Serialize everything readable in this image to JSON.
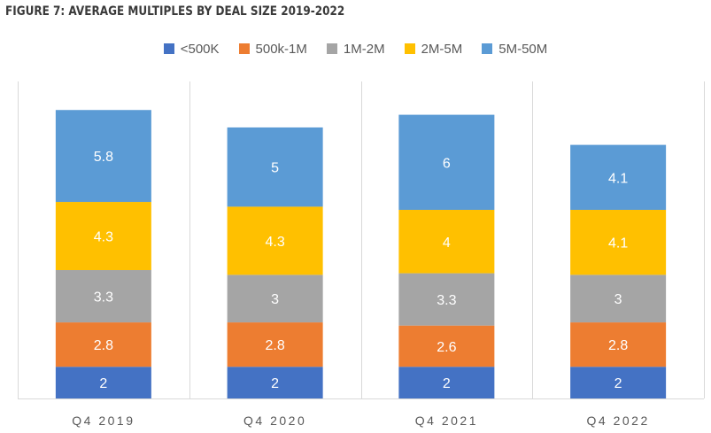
{
  "title": "FIGURE 7: AVERAGE MULTIPLES BY DEAL SIZE 2019-2022",
  "chart_data": {
    "type": "bar",
    "stacked": true,
    "categories": [
      "Q4 2019",
      "Q4 2020",
      "Q4 2021",
      "Q4 2022"
    ],
    "series": [
      {
        "name": "<500K",
        "color": "#4472C4",
        "values": [
          2,
          2,
          2,
          2
        ]
      },
      {
        "name": "500k-1M",
        "color": "#ED7D31",
        "values": [
          2.8,
          2.8,
          2.6,
          2.8
        ]
      },
      {
        "name": "1M-2M",
        "color": "#A5A5A5",
        "values": [
          3.3,
          3,
          3.3,
          3
        ]
      },
      {
        "name": "2M-5M",
        "color": "#FFC000",
        "values": [
          4.3,
          4.3,
          4,
          4.1
        ]
      },
      {
        "name": "5M-50M",
        "color": "#5B9BD5",
        "values": [
          5.8,
          5,
          6,
          4.1
        ]
      }
    ],
    "ylim": [
      0,
      20
    ],
    "legend": "top-center",
    "grid": false,
    "category_separators": true
  }
}
